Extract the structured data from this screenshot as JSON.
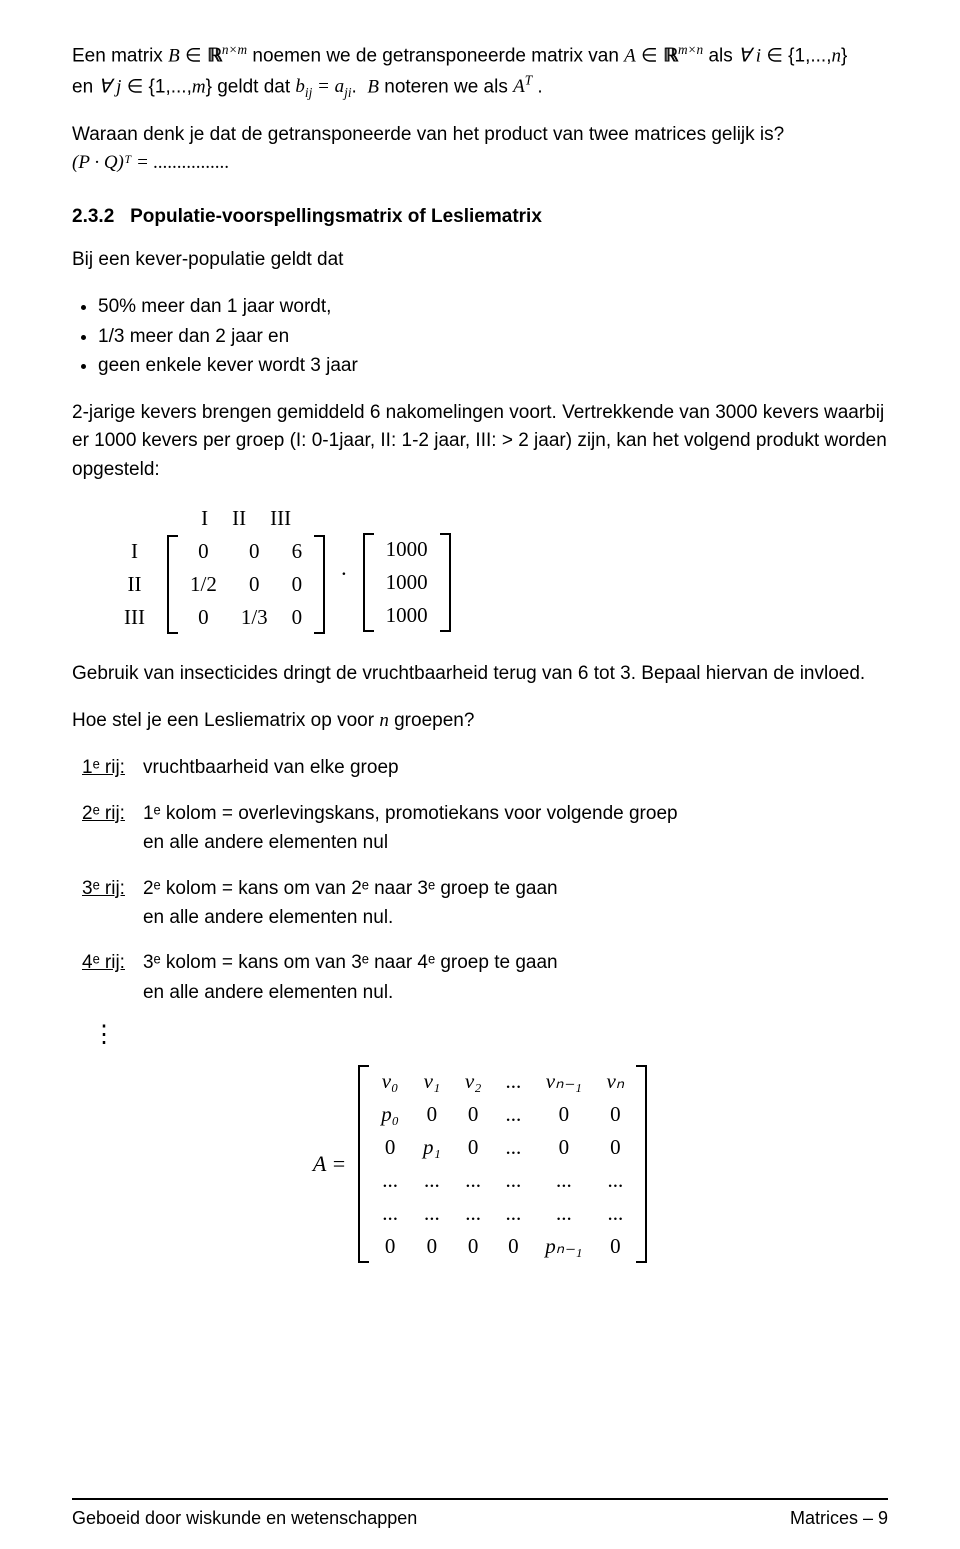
{
  "intro": {
    "line1_pre": "Een matrix ",
    "line1_mid": " noemen we de getransponeerde matrix van ",
    "line1_post": " als ",
    "line2_pre": "en ",
    "line2_mid": " geldt dat ",
    "line2_post": "  noteren we als ",
    "B": "B",
    "R": "ℝ",
    "nxm": "n×m",
    "A": "A",
    "mxn": "m×n",
    "forall": "∀",
    "i_in": "i ∈ {1,...,n}",
    "j_in": "j ∈ {1,...,m}",
    "bij": "b",
    "ij": "ij",
    "eq": " = ",
    "aji": "a",
    "ji": "ji",
    "dotB": ".  B",
    "AT": "Aᵀ",
    "dot2": " ."
  },
  "question": "Waraan denk je dat de getransponeerde van het product van twee matrices gelijk is?",
  "formula1": "(P · Q)ᵀ = ................",
  "section": {
    "num": "2.3.2",
    "title": "Populatie-voorspellingsmatrix of Lesliematrix"
  },
  "kever_intro": "Bij een kever-populatie geldt dat",
  "kever_items": [
    "50% meer dan 1 jaar wordt,",
    "1/3 meer dan 2 jaar en",
    "geen enkele kever wordt 3 jaar"
  ],
  "kever_body": "2-jarige kevers brengen gemiddeld 6 nakomelingen voort. Vertrekkende van 3000 kevers waarbij er 1000 kevers per groep (I: 0-1jaar, II: 1-2 jaar, III: > 2 jaar) zijn, kan het volgend produkt  worden opgesteld:",
  "leslie": {
    "col_labels": [
      "I",
      "II",
      "III"
    ],
    "row_labels": [
      "I",
      "II",
      "III"
    ],
    "cells": [
      [
        "0",
        "0",
        "6"
      ],
      [
        "1/2",
        "0",
        "0"
      ],
      [
        "0",
        "1/3",
        "0"
      ]
    ],
    "vector": [
      "1000",
      "1000",
      "1000"
    ]
  },
  "insectic": "Gebruik van insecticides dringt de vruchtbaarheid terug van 6 tot 3. Bepaal hiervan de invloed.",
  "question2": "Hoe stel je een Lesliematrix op voor n groepen?",
  "rows": [
    {
      "key": "1ᵉ rij:",
      "text": "vruchtbaarheid van elke groep"
    },
    {
      "key": "2ᵉ rij:",
      "text": "1ᵉ kolom = overlevingskans, promotiekans voor volgende groep\nen alle andere elementen nul"
    },
    {
      "key": "3ᵉ rij:",
      "text": "2ᵉ kolom = kans om van 2ᵉ naar 3ᵉ groep te gaan\nen alle andere elementen nul."
    },
    {
      "key": "4ᵉ rij:",
      "text": "3ᵉ kolom = kans om van 3ᵉ naar 4ᵉ groep te gaan\nen alle andere elementen nul."
    }
  ],
  "bigmatrix": {
    "lhs": "A =",
    "rows": [
      [
        "v₀",
        "v₁",
        "v₂",
        "...",
        "vₙ₋₁",
        "vₙ"
      ],
      [
        "p₀",
        "0",
        "0",
        "...",
        "0",
        "0"
      ],
      [
        "0",
        "p₁",
        "0",
        "...",
        "0",
        "0"
      ],
      [
        "...",
        "...",
        "...",
        "...",
        "...",
        "..."
      ],
      [
        "...",
        "...",
        "...",
        "...",
        "...",
        "..."
      ],
      [
        "0",
        "0",
        "0",
        "0",
        "pₙ₋₁",
        "0"
      ]
    ]
  },
  "footer": {
    "left": "Geboeid door wiskunde en wetenschappen",
    "right": "Matrices  –  9"
  }
}
